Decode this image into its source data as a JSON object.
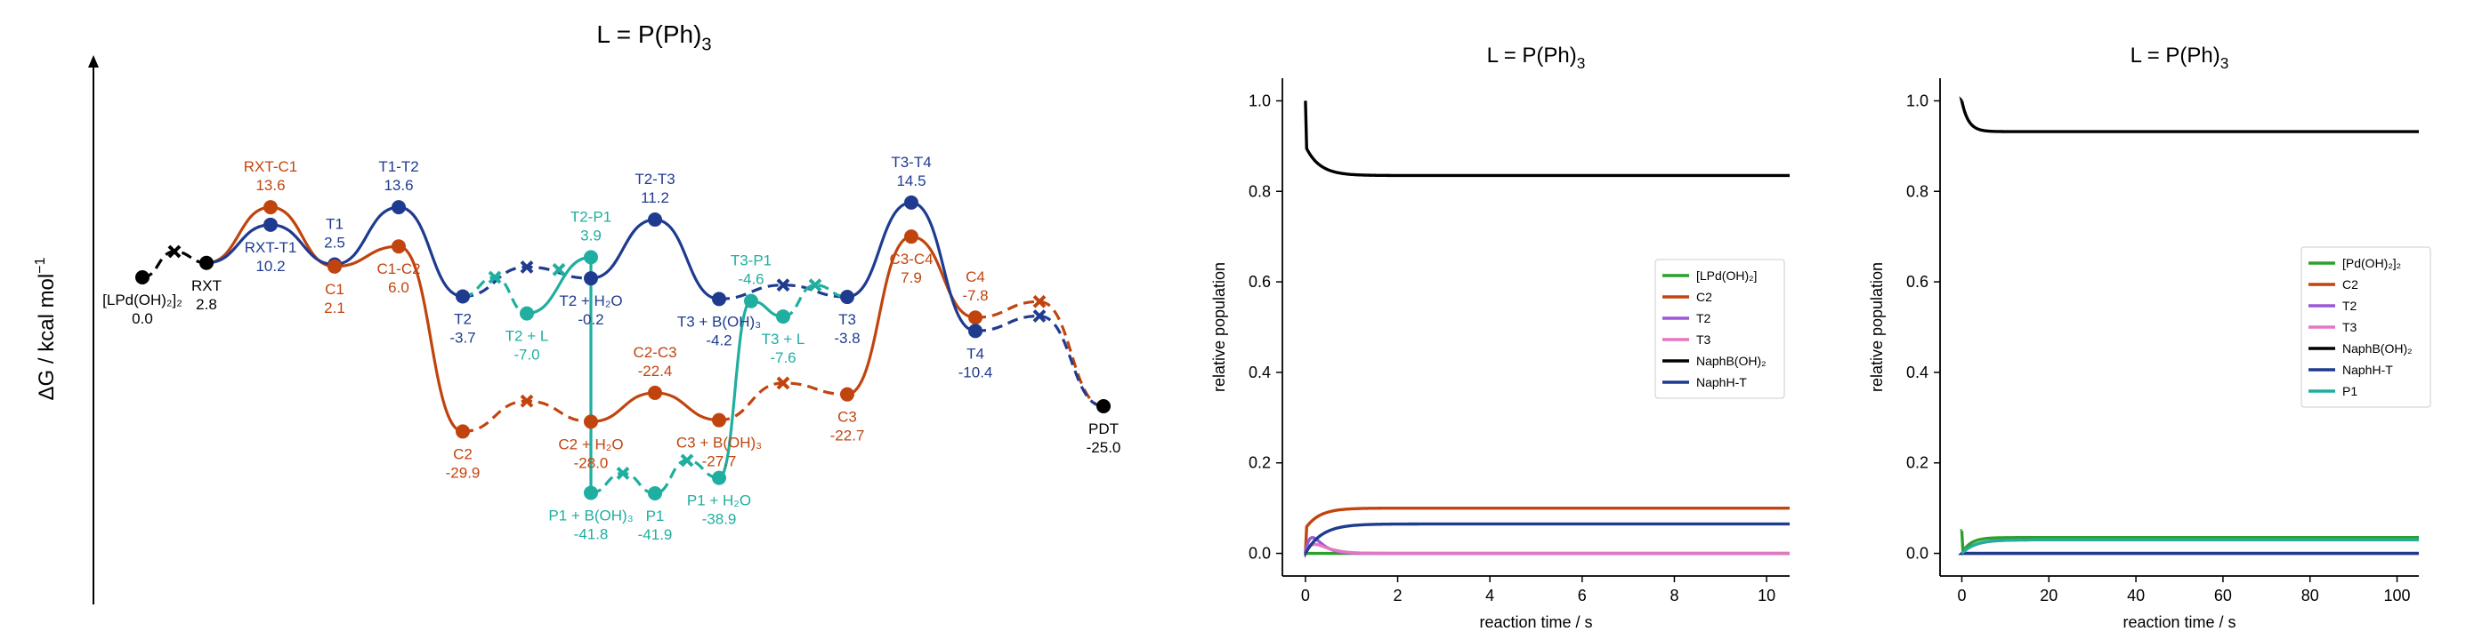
{
  "chart_data": [
    {
      "type": "energy_profile",
      "title": "L = P(Ph)",
      "title_sub": "3",
      "ylabel": "ΔG / kcal mol",
      "ylabel_sup": "−1",
      "colors": {
        "black": "#000000",
        "orange": "#c1440e",
        "blue": "#1f3b8f",
        "teal": "#1fae9f"
      },
      "states": [
        {
          "id": "LPd",
          "x": 0.5,
          "g": 0.0,
          "color": "black",
          "marker": "dot",
          "label": "[LPd(OH)₂]₂",
          "value": "0.0",
          "pos": "below"
        },
        {
          "id": "TS0",
          "x": 1.0,
          "g": 5.0,
          "color": "black",
          "marker": "x",
          "label": "",
          "value": "",
          "pos": "none"
        },
        {
          "id": "RXT",
          "x": 1.5,
          "g": 2.8,
          "color": "black",
          "marker": "dot",
          "label": "RXT",
          "value": "2.8",
          "pos": "below"
        },
        {
          "id": "RXT-C1",
          "x": 2.5,
          "g": 13.6,
          "color": "orange",
          "marker": "dot",
          "label": "RXT-C1",
          "value": "13.6",
          "pos": "above"
        },
        {
          "id": "RXT-T1",
          "x": 2.5,
          "g": 10.2,
          "color": "blue",
          "marker": "dot",
          "label": "RXT-T1",
          "value": "10.2",
          "pos": "below"
        },
        {
          "id": "T1",
          "x": 3.5,
          "g": 2.5,
          "color": "blue",
          "marker": "dot",
          "label": "T1",
          "value": "2.5",
          "pos": "above"
        },
        {
          "id": "C1",
          "x": 3.5,
          "g": 2.1,
          "color": "orange",
          "marker": "dot",
          "label": "C1",
          "value": "2.1",
          "pos": "below"
        },
        {
          "id": "T1-T2",
          "x": 4.5,
          "g": 13.6,
          "color": "blue",
          "marker": "dot",
          "label": "T1-T2",
          "value": "13.6",
          "pos": "above"
        },
        {
          "id": "C1-C2",
          "x": 4.5,
          "g": 6.0,
          "color": "orange",
          "marker": "dot",
          "label": "C1-C2",
          "value": "6.0",
          "pos": "below"
        },
        {
          "id": "T2",
          "x": 5.5,
          "g": -3.7,
          "color": "blue",
          "marker": "dot",
          "label": "T2",
          "value": "-3.7",
          "pos": "below"
        },
        {
          "id": "C2",
          "x": 5.5,
          "g": -29.9,
          "color": "orange",
          "marker": "dot",
          "label": "C2",
          "value": "-29.9",
          "pos": "below"
        },
        {
          "id": "TS-T2a",
          "x": 6.0,
          "g": 0.0,
          "color": "teal",
          "marker": "x",
          "label": "",
          "value": "",
          "pos": "none"
        },
        {
          "id": "T2+L",
          "x": 6.5,
          "g": -7.0,
          "color": "teal",
          "marker": "dot",
          "label": "T2 + L",
          "value": "-7.0",
          "pos": "below"
        },
        {
          "id": "TS-T2b",
          "x": 7.0,
          "g": 1.5,
          "color": "teal",
          "marker": "x",
          "label": "",
          "value": "",
          "pos": "none"
        },
        {
          "id": "TS-T2c",
          "x": 6.5,
          "g": 2.0,
          "color": "blue",
          "marker": "x",
          "label": "",
          "value": "",
          "pos": "none"
        },
        {
          "id": "T2-P1",
          "x": 7.5,
          "g": 3.9,
          "color": "teal",
          "marker": "dot",
          "label": "T2-P1",
          "value": "3.9",
          "pos": "above"
        },
        {
          "id": "T2+H2O",
          "x": 7.5,
          "g": -0.2,
          "color": "blue",
          "marker": "dot",
          "label": "T2 + H₂O",
          "value": "-0.2",
          "pos": "below"
        },
        {
          "id": "TS-C2a",
          "x": 6.5,
          "g": -24.0,
          "color": "orange",
          "marker": "x",
          "label": "",
          "value": "",
          "pos": "none"
        },
        {
          "id": "C2+H2O",
          "x": 7.5,
          "g": -28.0,
          "color": "orange",
          "marker": "dot",
          "label": "C2 + H₂O",
          "value": "-28.0",
          "pos": "below"
        },
        {
          "id": "P1+B(OH)3",
          "x": 7.5,
          "g": -41.8,
          "color": "teal",
          "marker": "dot",
          "label": "P1 + B(OH)₃",
          "value": "-41.8",
          "pos": "below"
        },
        {
          "id": "TS-P1a",
          "x": 8.0,
          "g": -38.0,
          "color": "teal",
          "marker": "x",
          "label": "",
          "value": "",
          "pos": "none"
        },
        {
          "id": "P1",
          "x": 8.5,
          "g": -41.9,
          "color": "teal",
          "marker": "dot",
          "label": "P1",
          "value": "-41.9",
          "pos": "below"
        },
        {
          "id": "TS-P1b",
          "x": 9.0,
          "g": -35.5,
          "color": "teal",
          "marker": "x",
          "label": "",
          "value": "",
          "pos": "none"
        },
        {
          "id": "P1+H2O",
          "x": 9.5,
          "g": -38.9,
          "color": "teal",
          "marker": "dot",
          "label": "P1 + H₂O",
          "value": "-38.9",
          "pos": "below"
        },
        {
          "id": "T2-T3",
          "x": 8.5,
          "g": 11.2,
          "color": "blue",
          "marker": "dot",
          "label": "T2-T3",
          "value": "11.2",
          "pos": "above"
        },
        {
          "id": "C2-C3",
          "x": 8.5,
          "g": -22.4,
          "color": "orange",
          "marker": "dot",
          "label": "C2-C3",
          "value": "-22.4",
          "pos": "above"
        },
        {
          "id": "T3+B(OH)3",
          "x": 9.5,
          "g": -4.2,
          "color": "blue",
          "marker": "dot",
          "label": "T3 + B(OH)₃",
          "value": "-4.2",
          "pos": "below"
        },
        {
          "id": "C3+B(OH)3",
          "x": 9.5,
          "g": -27.7,
          "color": "orange",
          "marker": "dot",
          "label": "C3 + B(OH)₃",
          "value": "-27.7",
          "pos": "below"
        },
        {
          "id": "T3-P1",
          "x": 10.0,
          "g": -4.6,
          "color": "teal",
          "marker": "dot",
          "label": "T3-P1",
          "value": "-4.6",
          "pos": "above"
        },
        {
          "id": "T3+L",
          "x": 10.5,
          "g": -7.6,
          "color": "teal",
          "marker": "dot",
          "label": "T3 + L",
          "value": "-7.6",
          "pos": "below"
        },
        {
          "id": "TS-T3a",
          "x": 10.5,
          "g": -1.5,
          "color": "blue",
          "marker": "x",
          "label": "",
          "value": "",
          "pos": "none"
        },
        {
          "id": "TS-T3b",
          "x": 11.0,
          "g": -1.5,
          "color": "teal",
          "marker": "x",
          "label": "",
          "value": "",
          "pos": "none"
        },
        {
          "id": "TS-C3a",
          "x": 10.5,
          "g": -20.5,
          "color": "orange",
          "marker": "x",
          "label": "",
          "value": "",
          "pos": "none"
        },
        {
          "id": "T3",
          "x": 11.5,
          "g": -3.8,
          "color": "blue",
          "marker": "dot",
          "label": "T3",
          "value": "-3.8",
          "pos": "below"
        },
        {
          "id": "C3",
          "x": 11.5,
          "g": -22.7,
          "color": "orange",
          "marker": "dot",
          "label": "C3",
          "value": "-22.7",
          "pos": "below"
        },
        {
          "id": "T3-T4",
          "x": 12.5,
          "g": 14.5,
          "color": "blue",
          "marker": "dot",
          "label": "T3-T4",
          "value": "14.5",
          "pos": "above"
        },
        {
          "id": "C3-C4",
          "x": 12.5,
          "g": 7.9,
          "color": "orange",
          "marker": "dot",
          "label": "C3-C4",
          "value": "7.9",
          "pos": "below"
        },
        {
          "id": "C4",
          "x": 13.5,
          "g": -7.8,
          "color": "orange",
          "marker": "dot",
          "label": "C4",
          "value": "-7.8",
          "pos": "above"
        },
        {
          "id": "T4",
          "x": 13.5,
          "g": -10.4,
          "color": "blue",
          "marker": "dot",
          "label": "T4",
          "value": "-10.4",
          "pos": "below"
        },
        {
          "id": "TS-C4a",
          "x": 14.5,
          "g": -4.7,
          "color": "orange",
          "marker": "x",
          "label": "",
          "value": "",
          "pos": "none"
        },
        {
          "id": "TS-T4a",
          "x": 14.5,
          "g": -7.5,
          "color": "blue",
          "marker": "x",
          "label": "",
          "value": "",
          "pos": "none"
        },
        {
          "id": "PDT",
          "x": 15.5,
          "g": -25.0,
          "color": "black",
          "marker": "dot",
          "label": "PDT",
          "value": "-25.0",
          "pos": "below"
        }
      ],
      "paths": [
        {
          "color": "black",
          "style": "dashed",
          "nodes": [
            "LPd",
            "TS0",
            "RXT"
          ]
        },
        {
          "color": "orange",
          "style": "solid",
          "nodes": [
            "RXT",
            "RXT-C1",
            "C1",
            "C1-C2",
            "C2"
          ]
        },
        {
          "color": "orange",
          "style": "dashed",
          "nodes": [
            "C2",
            "TS-C2a",
            "C2+H2O"
          ]
        },
        {
          "color": "orange",
          "style": "solid",
          "nodes": [
            "C2+H2O",
            "C2-C3",
            "C3+B(OH)3"
          ]
        },
        {
          "color": "orange",
          "style": "dashed",
          "nodes": [
            "C3+B(OH)3",
            "TS-C3a",
            "C3"
          ]
        },
        {
          "color": "orange",
          "style": "solid",
          "nodes": [
            "C3",
            "C3-C4",
            "C4"
          ]
        },
        {
          "color": "orange",
          "style": "dashed",
          "nodes": [
            "C4",
            "TS-C4a",
            "PDT"
          ]
        },
        {
          "color": "blue",
          "style": "solid",
          "nodes": [
            "RXT",
            "RXT-T1",
            "T1",
            "T1-T2",
            "T2"
          ]
        },
        {
          "color": "blue",
          "style": "dashed",
          "nodes": [
            "T2",
            "TS-T2c",
            "T2+H2O"
          ]
        },
        {
          "color": "blue",
          "style": "solid",
          "nodes": [
            "T2+H2O",
            "T2-T3",
            "T3+B(OH)3"
          ]
        },
        {
          "color": "blue",
          "style": "dashed",
          "nodes": [
            "T3+B(OH)3",
            "TS-T3a",
            "T3"
          ]
        },
        {
          "color": "blue",
          "style": "solid",
          "nodes": [
            "T3",
            "T3-T4",
            "T4"
          ]
        },
        {
          "color": "blue",
          "style": "dashed",
          "nodes": [
            "T4",
            "TS-T4a",
            "PDT"
          ]
        },
        {
          "color": "teal",
          "style": "dashed",
          "nodes": [
            "T2",
            "TS-T2a",
            "T2+L"
          ]
        },
        {
          "color": "teal",
          "style": "solid",
          "nodes": [
            "T2+L",
            "T2-P1",
            "P1+B(OH)3"
          ]
        },
        {
          "color": "teal",
          "style": "dashed",
          "nodes": [
            "P1+B(OH)3",
            "TS-P1a",
            "P1",
            "TS-P1b",
            "P1+H2O"
          ]
        },
        {
          "color": "teal",
          "style": "solid",
          "nodes": [
            "P1+H2O",
            "T3-P1",
            "T3+L"
          ]
        },
        {
          "color": "teal",
          "style": "dashed",
          "nodes": [
            "T3+L",
            "TS-T3b",
            "T3"
          ]
        }
      ]
    },
    {
      "type": "line",
      "title": "L = P(Ph)",
      "title_sub": "3",
      "xlabel": "reaction time / s",
      "ylabel": "relative population",
      "xlim": [
        -0.5,
        10.5
      ],
      "ylim": [
        -0.05,
        1.05
      ],
      "xticks": [
        0,
        2,
        4,
        6,
        8,
        10
      ],
      "yticks": [
        0.0,
        0.2,
        0.4,
        0.6,
        0.8,
        1.0
      ],
      "legend_position": "center-right",
      "series": [
        {
          "name": "[LPd(OH)₂]",
          "color": "#2ca02c",
          "kind": "decay",
          "y0": 0.0,
          "yinf": 0.0,
          "tau": 0.1
        },
        {
          "name": "C2",
          "color": "#c1440e",
          "kind": "rise",
          "y0": 0.0,
          "yjump": 0.055,
          "yinf": 0.1,
          "tau": 0.3
        },
        {
          "name": "T2",
          "color": "#9b59d6",
          "kind": "pulse",
          "y0": 0.0,
          "peak": 0.035,
          "tau": 0.15
        },
        {
          "name": "T3",
          "color": "#e377c2",
          "kind": "pulse",
          "y0": 0.0,
          "peak": 0.02,
          "tau": 0.2
        },
        {
          "name": "NaphB(OH)₂",
          "color": "#000000",
          "kind": "decay",
          "y0": 1.0,
          "yjump": 0.9,
          "yinf": 0.835,
          "tau": 0.3
        },
        {
          "name": "NaphH-T",
          "color": "#1f3b8f",
          "kind": "rise",
          "y0": 0.0,
          "yjump": 0.0,
          "yinf": 0.065,
          "tau": 0.35
        }
      ]
    },
    {
      "type": "line",
      "title": "L = P(Ph)",
      "title_sub": "3",
      "xlabel": "reaction time / s",
      "ylabel": "relative population",
      "xlim": [
        -5,
        105
      ],
      "ylim": [
        -0.05,
        1.05
      ],
      "xticks": [
        0,
        20,
        40,
        60,
        80,
        100
      ],
      "yticks": [
        0.0,
        0.2,
        0.4,
        0.6,
        0.8,
        1.0
      ],
      "legend_position": "center-right",
      "series": [
        {
          "name": "[Pd(OH)₂]₂",
          "color": "#2ca02c",
          "kind": "spike",
          "y0": 0.05,
          "ymin": 0.0,
          "yinf": 0.035,
          "tau": 2.0
        },
        {
          "name": "C2",
          "color": "#c1440e",
          "kind": "rise",
          "y0": 0.0,
          "yjump": 0.0,
          "yinf": 0.03,
          "tau": 3.0
        },
        {
          "name": "T2",
          "color": "#9b59d6",
          "kind": "flat",
          "y0": 0.0,
          "yinf": 0.0,
          "tau": 1.0
        },
        {
          "name": "T3",
          "color": "#e377c2",
          "kind": "flat",
          "y0": 0.0,
          "yinf": 0.0,
          "tau": 1.0
        },
        {
          "name": "NaphB(OH)₂",
          "color": "#000000",
          "kind": "decay",
          "y0": 1.0,
          "yjump": 1.0,
          "yinf": 0.932,
          "tau": 1.5
        },
        {
          "name": "NaphH-T",
          "color": "#1f3b8f",
          "kind": "flat",
          "y0": 0.0,
          "yinf": 0.0,
          "tau": 1.0
        },
        {
          "name": "P1",
          "color": "#1fae9f",
          "kind": "rise",
          "y0": 0.0,
          "yjump": 0.0,
          "yinf": 0.03,
          "tau": 3.0
        }
      ]
    }
  ]
}
